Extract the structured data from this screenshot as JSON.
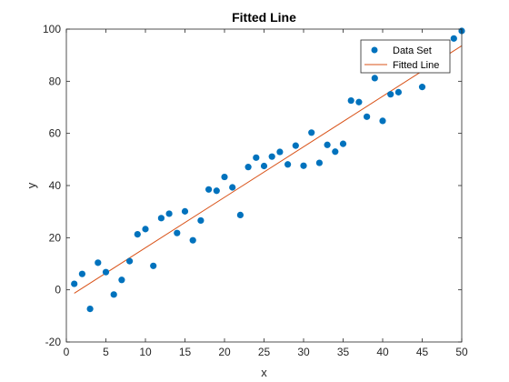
{
  "chart_data": {
    "type": "scatter",
    "title": "Fitted Line",
    "xlabel": "x",
    "ylabel": "y",
    "xlim": [
      0,
      50
    ],
    "ylim": [
      -20,
      100
    ],
    "xticks": [
      0,
      5,
      10,
      15,
      20,
      25,
      30,
      35,
      40,
      45,
      50
    ],
    "yticks": [
      -20,
      0,
      20,
      40,
      60,
      80,
      100
    ],
    "grid": false,
    "legend_position": "top-right",
    "series": [
      {
        "name": "Data Set",
        "kind": "scatter",
        "color": "#0072BD",
        "x": [
          1,
          2,
          3,
          4,
          5,
          6,
          7,
          8,
          9,
          10,
          11,
          12,
          13,
          14,
          15,
          16,
          17,
          18,
          19,
          20,
          21,
          22,
          23,
          24,
          25,
          26,
          27,
          28,
          29,
          30,
          31,
          32,
          33,
          34,
          35,
          36,
          37,
          38,
          39,
          40,
          41,
          42,
          45,
          49,
          50
        ],
        "y": [
          2.3,
          6.1,
          -7.3,
          10.4,
          6.8,
          -1.8,
          3.8,
          11.0,
          21.3,
          23.3,
          9.2,
          27.5,
          29.2,
          21.8,
          30.1,
          19.0,
          26.6,
          38.5,
          38.0,
          43.3,
          39.3,
          28.7,
          47.1,
          50.7,
          47.5,
          51.1,
          52.9,
          48.1,
          55.3,
          47.6,
          60.3,
          48.7,
          55.6,
          53.0,
          56.0,
          72.6,
          72.0,
          66.4,
          81.2,
          64.8,
          75.0,
          75.8,
          77.8,
          96.4,
          99.3
        ]
      },
      {
        "name": "Fitted Line",
        "kind": "line",
        "color": "#D95319",
        "x": [
          1,
          50
        ],
        "y": [
          -1.3,
          93.6
        ]
      }
    ]
  }
}
